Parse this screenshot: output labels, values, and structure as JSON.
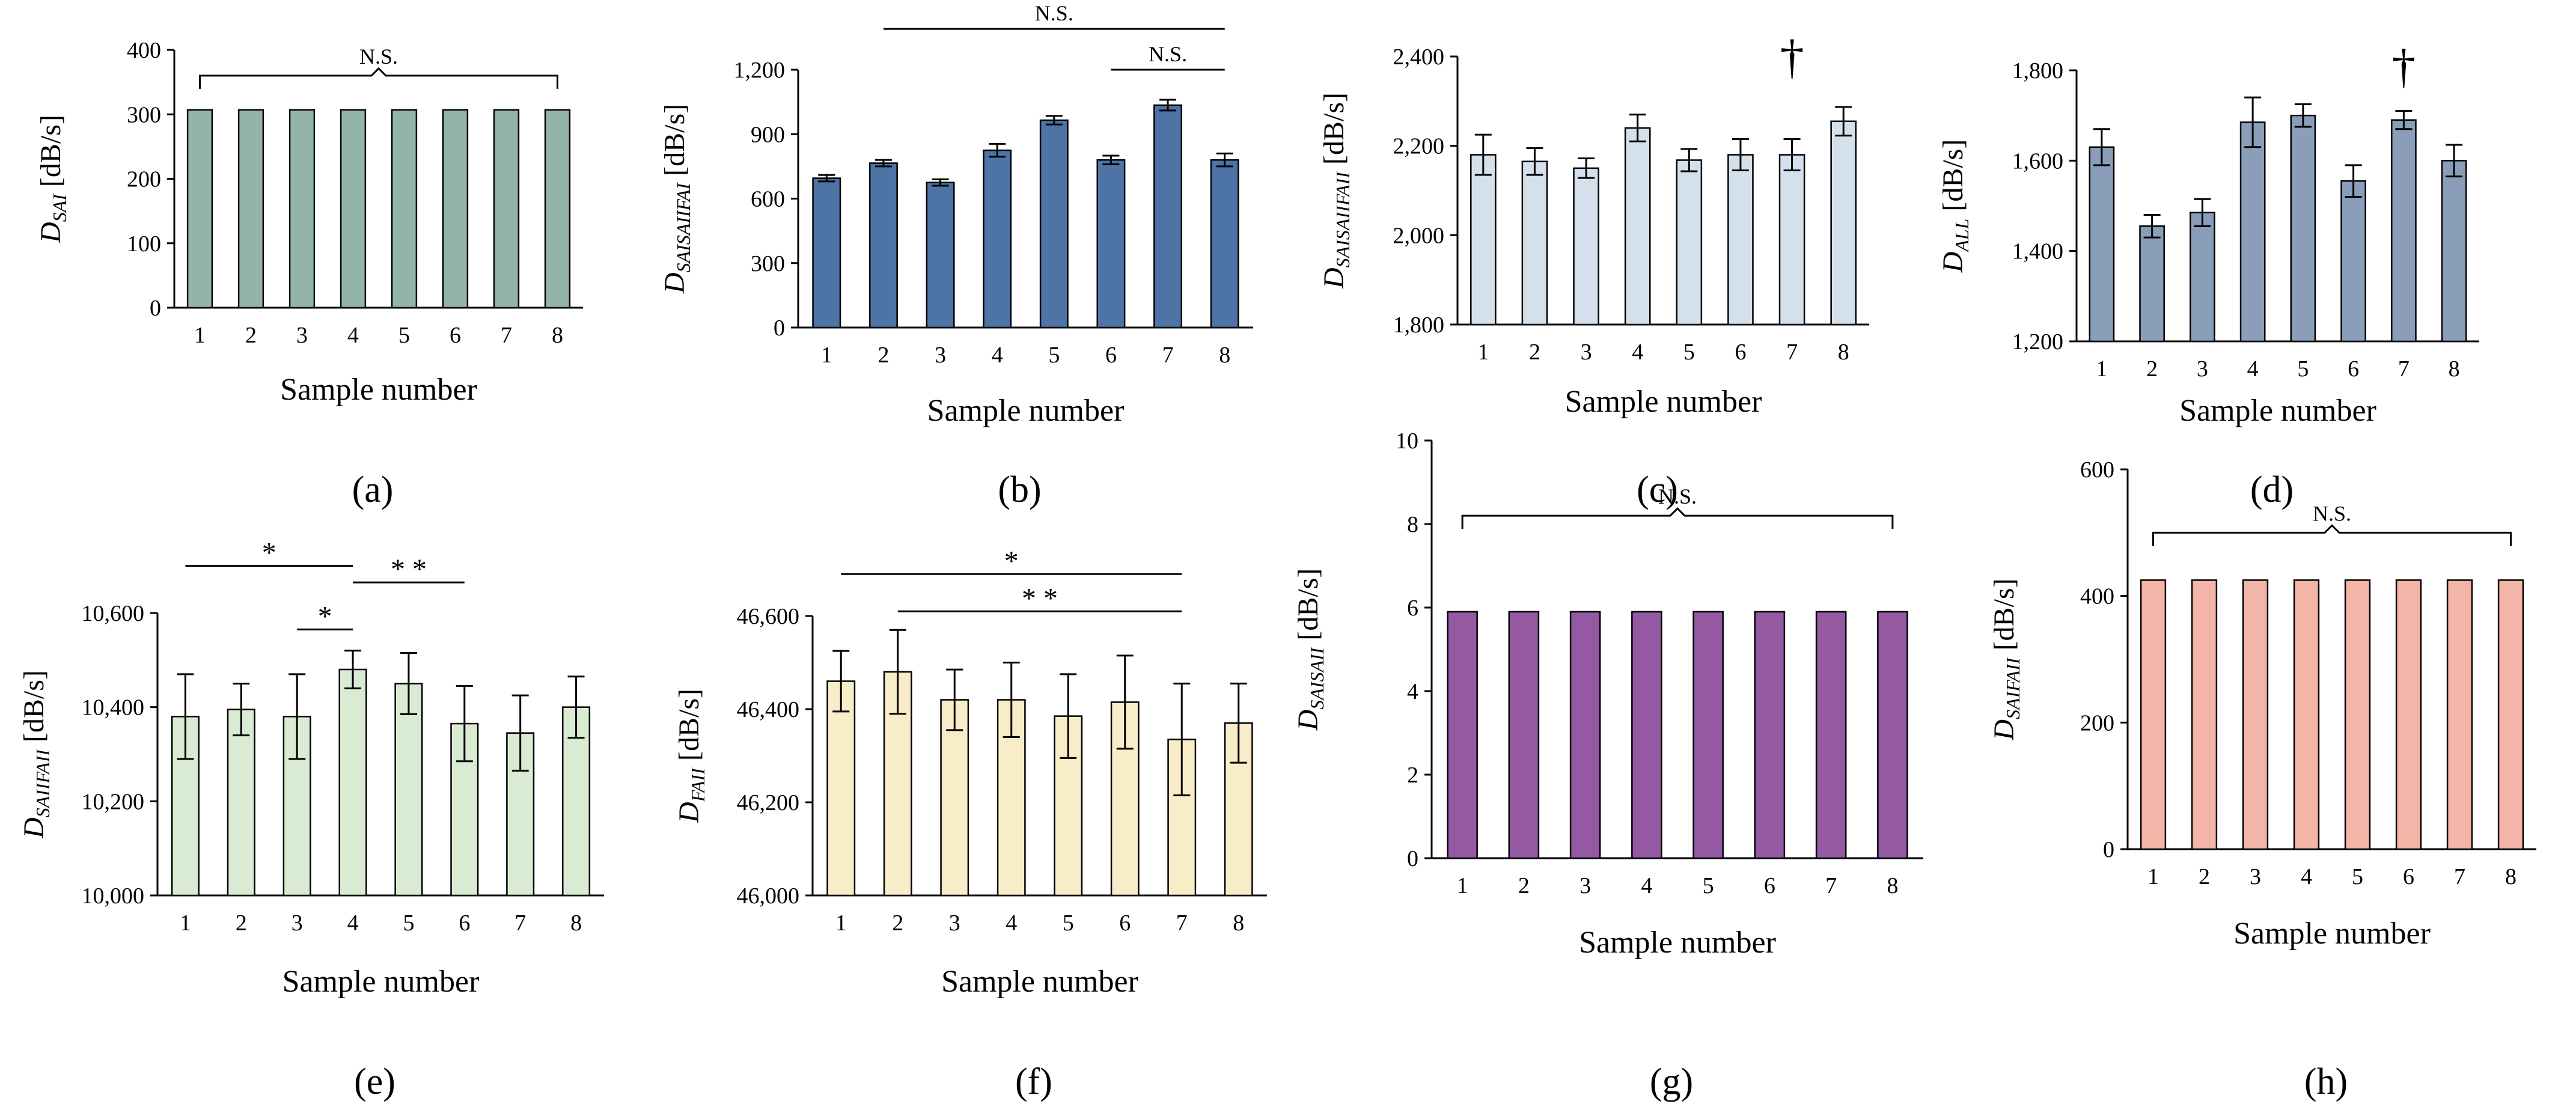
{
  "chart_data": [
    {
      "id": "a",
      "type": "bar",
      "panel_label": "(a)",
      "y_main": "D",
      "y_sub": "SAI",
      "y_unit": " [dB/s]",
      "xlabel": "Sample number",
      "categories": [
        "1",
        "2",
        "3",
        "4",
        "5",
        "6",
        "7",
        "8"
      ],
      "values": [
        307,
        307,
        307,
        307,
        307,
        307,
        307,
        307
      ],
      "errors": [
        0,
        0,
        0,
        0,
        0,
        0,
        0,
        0
      ],
      "ylim": [
        0,
        400
      ],
      "yticks": [
        0,
        100,
        200,
        300,
        400
      ],
      "ytick_labels": [
        "0",
        "100",
        "200",
        "300",
        "400"
      ],
      "bar_color": "#93b5a8",
      "annotations": [
        {
          "kind": "bracket",
          "from": 1,
          "to": 8,
          "y": 360,
          "text": "N.S."
        }
      ]
    },
    {
      "id": "b",
      "type": "bar",
      "panel_label": "(b)",
      "y_main": "D",
      "y_sub": "SAISAIIFAI",
      "y_unit": " [dB/s]",
      "xlabel": "Sample number",
      "categories": [
        "1",
        "2",
        "3",
        "4",
        "5",
        "6",
        "7",
        "8"
      ],
      "values": [
        695,
        765,
        675,
        825,
        965,
        780,
        1035,
        780
      ],
      "errors": [
        15,
        15,
        15,
        30,
        20,
        20,
        25,
        30
      ],
      "ylim": [
        0,
        1200
      ],
      "yticks": [
        0,
        300,
        600,
        900,
        1200
      ],
      "ytick_labels": [
        "0",
        "300",
        "600",
        "900",
        "1,200"
      ],
      "bar_color": "#4e74a6",
      "annotations": [
        {
          "kind": "line",
          "from": 2,
          "to": 8,
          "y": 1390,
          "text": "N.S."
        },
        {
          "kind": "line",
          "from": 6,
          "to": 8,
          "y": 1200,
          "text": "N.S."
        }
      ]
    },
    {
      "id": "c",
      "type": "bar",
      "panel_label": "(c)",
      "y_main": "D",
      "y_sub": "SAISAIIFAII",
      "y_unit": " [dB/s]",
      "xlabel": "Sample number",
      "categories": [
        "1",
        "2",
        "3",
        "4",
        "5",
        "6",
        "7",
        "8"
      ],
      "values": [
        2180,
        2165,
        2150,
        2240,
        2168,
        2180,
        2180,
        2255
      ],
      "errors": [
        45,
        30,
        22,
        30,
        25,
        35,
        35,
        32
      ],
      "ylim": [
        1800,
        2400
      ],
      "yticks": [
        1800,
        2000,
        2200,
        2400
      ],
      "ytick_labels": [
        "1,800",
        "2,000",
        "2,200",
        "2,400"
      ],
      "bar_color": "#d4e1ec",
      "annotations": [
        {
          "kind": "dagger",
          "at": 7,
          "y": 2390,
          "text": "†"
        }
      ]
    },
    {
      "id": "d",
      "type": "bar",
      "panel_label": "(d)",
      "y_main": "D",
      "y_sub": "ALL",
      "y_unit": " [dB/s]",
      "xlabel": "Sample number",
      "categories": [
        "1",
        "2",
        "3",
        "4",
        "5",
        "6",
        "7",
        "8"
      ],
      "values": [
        1630,
        1455,
        1485,
        1685,
        1700,
        1555,
        1690,
        1600
      ],
      "errors": [
        40,
        25,
        30,
        55,
        25,
        35,
        20,
        35
      ],
      "ylim": [
        1200,
        1800
      ],
      "yticks": [
        1200,
        1400,
        1600,
        1800
      ],
      "ytick_labels": [
        "1,200",
        "1,400",
        "1,600",
        "1,800"
      ],
      "bar_color": "#8a9db9",
      "annotations": [
        {
          "kind": "dagger",
          "at": 7,
          "y": 1800,
          "text": "†"
        }
      ]
    },
    {
      "id": "e",
      "type": "bar",
      "panel_label": "(e)",
      "y_main": "D",
      "y_sub": "SAIIFAII",
      "y_unit": " [dB/s]",
      "xlabel": "Sample number",
      "categories": [
        "1",
        "2",
        "3",
        "4",
        "5",
        "6",
        "7",
        "8"
      ],
      "values": [
        10380,
        10395,
        10380,
        10480,
        10450,
        10365,
        10345,
        10400
      ],
      "errors": [
        90,
        55,
        90,
        40,
        65,
        80,
        80,
        65
      ],
      "ylim": [
        10000,
        10600
      ],
      "yticks": [
        10000,
        10200,
        10400,
        10600
      ],
      "ytick_labels": [
        "10,000",
        "10,200",
        "10,400",
        "10,600"
      ],
      "bar_color": "#d9ebd3",
      "annotations": [
        {
          "kind": "line",
          "from": 1,
          "to": 4,
          "y": 10700,
          "text": "*"
        },
        {
          "kind": "line",
          "from": 3,
          "to": 4,
          "y": 10565,
          "text": "*"
        },
        {
          "kind": "line",
          "from": 4,
          "to": 6,
          "y": 10665,
          "text": "* *"
        }
      ]
    },
    {
      "id": "f",
      "type": "bar",
      "panel_label": "(f)",
      "y_main": "D",
      "y_sub": "FAII",
      "y_unit": " [dB/s]",
      "xlabel": "Sample number",
      "categories": [
        "1",
        "2",
        "3",
        "4",
        "5",
        "6",
        "7",
        "8"
      ],
      "values": [
        46460,
        46480,
        46420,
        46420,
        46385,
        46415,
        46335,
        46370
      ],
      "errors": [
        65,
        90,
        65,
        80,
        90,
        100,
        120,
        85
      ],
      "ylim": [
        46000,
        46600
      ],
      "yticks": [
        46000,
        46200,
        46400,
        46600
      ],
      "ytick_labels": [
        "46,000",
        "46,200",
        "46,400",
        "46,600"
      ],
      "bar_color": "#f9ecc9",
      "annotations": [
        {
          "kind": "line",
          "from": 1,
          "to": 7,
          "y": 46690,
          "text": "*"
        },
        {
          "kind": "line",
          "from": 2,
          "to": 7,
          "y": 46610,
          "text": "* *"
        }
      ]
    },
    {
      "id": "g",
      "type": "bar",
      "panel_label": "(g)",
      "y_main": "D",
      "y_sub": "SAISAII",
      "y_unit": " [dB/s]",
      "xlabel": "Sample number",
      "categories": [
        "1",
        "2",
        "3",
        "4",
        "5",
        "6",
        "7",
        "8"
      ],
      "values": [
        5.9,
        5.9,
        5.9,
        5.9,
        5.9,
        5.9,
        5.9,
        5.9
      ],
      "errors": [
        0,
        0,
        0,
        0,
        0,
        0,
        0,
        0
      ],
      "ylim": [
        0,
        10
      ],
      "yticks": [
        0,
        2,
        4,
        6,
        8,
        10
      ],
      "ytick_labels": [
        "0",
        "2",
        "4",
        "6",
        "8",
        "10"
      ],
      "bar_color": "#9558a3",
      "annotations": [
        {
          "kind": "bracket",
          "from": 1,
          "to": 8,
          "y": 8.2,
          "text": "N.S."
        }
      ]
    },
    {
      "id": "h",
      "type": "bar",
      "panel_label": "(h)",
      "y_main": "D",
      "y_sub": "SAIFAII",
      "y_unit": " [dB/s]",
      "xlabel": "Sample number",
      "categories": [
        "1",
        "2",
        "3",
        "4",
        "5",
        "6",
        "7",
        "8"
      ],
      "values": [
        425,
        425,
        425,
        425,
        425,
        425,
        425,
        425
      ],
      "errors": [
        0,
        0,
        0,
        0,
        0,
        0,
        0,
        0
      ],
      "ylim": [
        0,
        600
      ],
      "yticks": [
        0,
        200,
        400,
        600
      ],
      "ytick_labels": [
        "0",
        "200",
        "400",
        "600"
      ],
      "bar_color": "#f3b5a7",
      "annotations": [
        {
          "kind": "bracket",
          "from": 1,
          "to": 8,
          "y": 500,
          "text": "N.S."
        }
      ]
    }
  ]
}
